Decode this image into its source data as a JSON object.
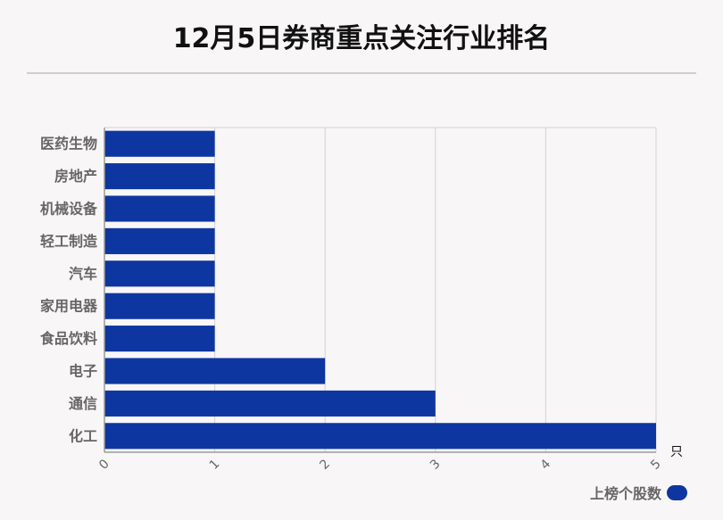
{
  "title": "12月5日券商重点关注行业排名",
  "chart_data": {
    "type": "bar",
    "orientation": "horizontal",
    "categories": [
      "医药生物",
      "房地产",
      "机械设备",
      "轻工制造",
      "汽车",
      "家用电器",
      "食品饮料",
      "电子",
      "通信",
      "化工"
    ],
    "series": [
      {
        "name": "上榜个股数",
        "values": [
          1,
          1,
          1,
          1,
          1,
          1,
          1,
          2,
          3,
          5
        ]
      }
    ],
    "xlim": [
      0,
      5
    ],
    "xticks": [
      "0",
      "1",
      "2",
      "3",
      "4",
      "5"
    ],
    "xunit": "只",
    "grid": true,
    "legend_position": "bottom-right",
    "bar_color": "#0e36a0"
  }
}
